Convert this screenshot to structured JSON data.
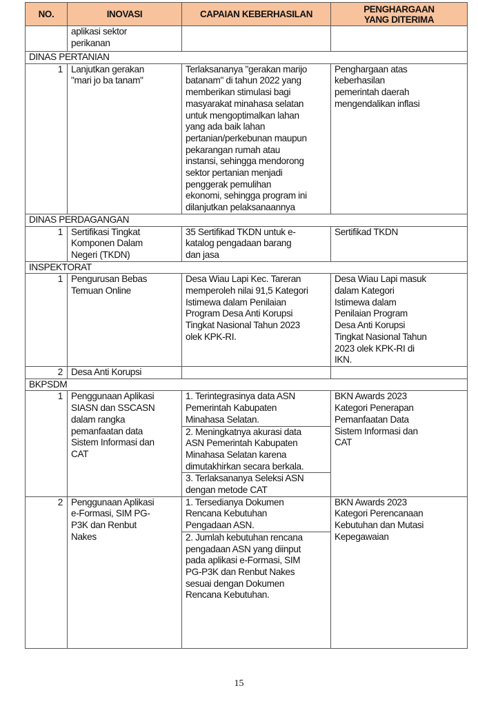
{
  "header": {
    "no": "NO.",
    "inovasi": "INOVASI",
    "capaian": "CAPAIAN KEBERHASILAN",
    "penghargaan": "PENGHARGAAN\nYANG DITERIMA"
  },
  "header_color": "#f8c29c",
  "rows": [
    {
      "type": "row",
      "no": "",
      "inovasi": "aplikasi sektor\nperikanan",
      "capaian": [
        ""
      ],
      "penghargaan": "",
      "h": 37
    },
    {
      "type": "section",
      "label": "DINAS PERTANIAN"
    },
    {
      "type": "row",
      "no": "1",
      "inovasi": "Lanjutkan gerakan\n\"mari jo ba tanam\"",
      "capaian": [
        "Terlaksananya \"gerakan marijo\nbatanam\" di tahun 2022 yang\nmemberikan stimulasi bagi\nmasyarakat minahasa selatan\nuntuk mengoptimalkan lahan\nyang ada baik lahan\npertanian/perkebunan maupun\npekarangan rumah atau\ninstansi, sehingga mendorong\nsektor pertanian menjadi\npenggerak pemulihan\nekonomi, sehingga program ini\ndilanjutkan pelaksanaannya"
      ],
      "penghargaan": "Penghargaan atas\nkeberhasilan\npemerintah daerah\nmengendalikan inflasi"
    },
    {
      "type": "section",
      "label": "DINAS PERDAGANGAN"
    },
    {
      "type": "row",
      "no": "1",
      "inovasi": "Sertifikasi Tingkat\nKomponen Dalam\nNegeri (TKDN)",
      "capaian": [
        "35 Sertifikad TKDN untuk e-\nkatalog pengadaan barang\ndan jasa"
      ],
      "penghargaan": "Sertifikad TKDN"
    },
    {
      "type": "section",
      "label": "INSPEKTORAT"
    },
    {
      "type": "row",
      "no": "1",
      "inovasi": "Pengurusan Bebas\nTemuan Online",
      "capaian": [
        "Desa Wiau Lapi Kec. Tareran\nmemperoleh nilai 91,5 Kategori\nIstimewa dalam Penilaian\nProgram Desa Anti Korupsi\nTingkat Nasional Tahun 2023\nolek KPK-RI."
      ],
      "penghargaan": "Desa Wiau Lapi masuk\ndalam Kategori\nIstimewa dalam\nPenilaian Program\nDesa Anti Korupsi\nTingkat Nasional Tahun\n2023 olek KPK-RI di\nIKN."
    },
    {
      "type": "row",
      "no": "2",
      "inovasi": "Desa Anti Korupsi",
      "capaian": [
        ""
      ],
      "penghargaan": ""
    },
    {
      "type": "section",
      "label": "BKPSDM"
    },
    {
      "type": "row",
      "no": "1",
      "inovasi": "Penggunaan Aplikasi\nSIASN dan SSCASN\ndalam rangka\npemanfaatan data\nSistem Informasi dan\nCAT",
      "capaian": [
        "1.  Terintegrasinya data ASN\nPemerintah Kabupaten\nMinahasa Selatan.",
        "2.  Meningkatnya akurasi data\nASN Pemerintah Kabupaten\nMinahasa Selatan karena\ndimutakhirkan secara berkala.",
        "3.  Terlaksananya Seleksi ASN\ndengan metode CAT"
      ],
      "penghargaan": "BKN Awards 2023\nKategori Penerapan\nPemanfaatan Data\nSistem Informasi dan\nCAT"
    },
    {
      "type": "row",
      "no": "2",
      "inovasi": "Penggunaan Aplikasi\ne-Formasi, SIM PG-\nP3K dan Renbut\nNakes",
      "capaian": [
        "1.  Tersedianya Dokumen\nRencana Kebutuhan\nPengadaan ASN.",
        "2.  Jumlah kebutuhan rencana\npengadaan ASN yang diinput\npada aplikasi e-Formasi, SIM\nPG-P3K dan Renbut Nakes\nsesuai dengan Dokumen\nRencana Kebutuhan."
      ],
      "penghargaan": "BKN Awards 2023\nKategori Perencanaan\nKebutuhan dan Mutasi\nKepegawaian",
      "h": 220
    }
  ],
  "page_number": "15"
}
